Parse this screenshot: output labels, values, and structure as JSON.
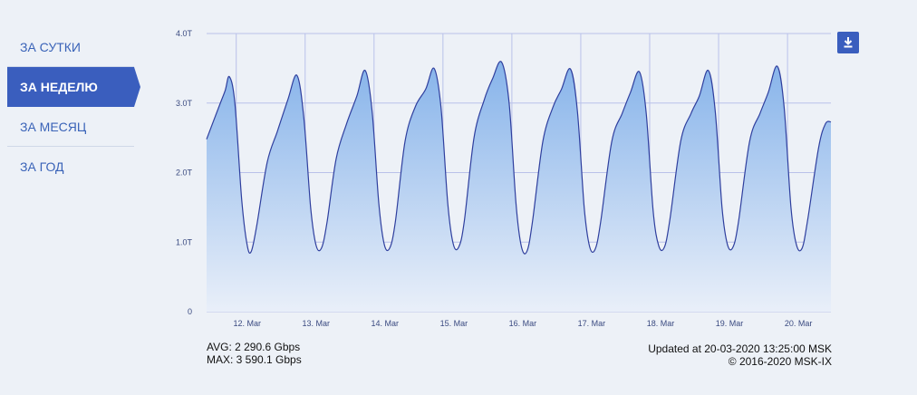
{
  "nav": {
    "items": [
      {
        "label": "ЗА СУТКИ",
        "active": false
      },
      {
        "label": "ЗА НЕДЕЛЮ",
        "active": true
      },
      {
        "label": "ЗА МЕСЯЦ",
        "active": false
      },
      {
        "label": "ЗА ГОД",
        "active": false
      }
    ]
  },
  "download": {
    "icon": "download-icon",
    "color": "#3a5ebe"
  },
  "stats": {
    "avg": "AVG: 2 290.6 Gbps",
    "max": "MAX: 3 590.1 Gbps"
  },
  "footer": {
    "updated": "Updated at 20-03-2020 13:25:00 MSK",
    "copyright": "© 2016-2020 MSK-IX"
  },
  "chart_data": {
    "type": "area",
    "title": "",
    "xlabel": "",
    "ylabel": "",
    "unit": "Tbps",
    "ylim": [
      0,
      4
    ],
    "xlim": [
      -0.43,
      8.63
    ],
    "grid": true,
    "legend": "none",
    "colors": {
      "line": "#2f3f9e",
      "fill_top": "#86b3ea",
      "fill_bottom": "#e9eff9",
      "grid": "#b9c1ea"
    },
    "y_ticks": [
      {
        "value": 0,
        "label": "0"
      },
      {
        "value": 1,
        "label": "1.0T"
      },
      {
        "value": 2,
        "label": "2.0T"
      },
      {
        "value": 3,
        "label": "3.0T"
      },
      {
        "value": 4,
        "label": "4.0T"
      }
    ],
    "x_ticks": [
      {
        "value": 0,
        "label": "12. Mar"
      },
      {
        "value": 1,
        "label": "13. Mar"
      },
      {
        "value": 2,
        "label": "14. Mar"
      },
      {
        "value": 3,
        "label": "15. Mar"
      },
      {
        "value": 4,
        "label": "16. Mar"
      },
      {
        "value": 5,
        "label": "17. Mar"
      },
      {
        "value": 6,
        "label": "18. Mar"
      },
      {
        "value": 7,
        "label": "19. Mar"
      },
      {
        "value": 8,
        "label": "20. Mar"
      }
    ],
    "series": [
      {
        "points": [
          [
            -0.43,
            2.48
          ],
          [
            -0.25,
            2.95
          ],
          [
            -0.16,
            3.18
          ],
          [
            -0.1,
            3.38
          ],
          [
            -0.02,
            3.0
          ],
          [
            0.08,
            1.6
          ],
          [
            0.16,
            0.95
          ],
          [
            0.22,
            0.87
          ],
          [
            0.3,
            1.25
          ],
          [
            0.45,
            2.15
          ],
          [
            0.6,
            2.6
          ],
          [
            0.75,
            3.05
          ],
          [
            0.88,
            3.4
          ],
          [
            0.98,
            2.8
          ],
          [
            1.08,
            1.5
          ],
          [
            1.16,
            0.95
          ],
          [
            1.24,
            0.92
          ],
          [
            1.32,
            1.3
          ],
          [
            1.45,
            2.2
          ],
          [
            1.6,
            2.7
          ],
          [
            1.75,
            3.1
          ],
          [
            1.87,
            3.47
          ],
          [
            1.97,
            2.9
          ],
          [
            2.07,
            1.55
          ],
          [
            2.15,
            0.96
          ],
          [
            2.23,
            0.92
          ],
          [
            2.31,
            1.3
          ],
          [
            2.45,
            2.45
          ],
          [
            2.6,
            2.95
          ],
          [
            2.75,
            3.2
          ],
          [
            2.87,
            3.5
          ],
          [
            2.97,
            2.95
          ],
          [
            3.07,
            1.55
          ],
          [
            3.15,
            0.97
          ],
          [
            3.23,
            0.93
          ],
          [
            3.31,
            1.3
          ],
          [
            3.45,
            2.5
          ],
          [
            3.6,
            3.05
          ],
          [
            3.72,
            3.35
          ],
          [
            3.85,
            3.59
          ],
          [
            3.96,
            3.0
          ],
          [
            4.06,
            1.55
          ],
          [
            4.14,
            0.93
          ],
          [
            4.22,
            0.87
          ],
          [
            4.3,
            1.3
          ],
          [
            4.45,
            2.45
          ],
          [
            4.6,
            2.95
          ],
          [
            4.72,
            3.2
          ],
          [
            4.85,
            3.49
          ],
          [
            4.95,
            2.9
          ],
          [
            5.05,
            1.5
          ],
          [
            5.13,
            0.93
          ],
          [
            5.21,
            0.9
          ],
          [
            5.29,
            1.3
          ],
          [
            5.45,
            2.45
          ],
          [
            5.6,
            2.85
          ],
          [
            5.72,
            3.15
          ],
          [
            5.85,
            3.45
          ],
          [
            5.95,
            2.85
          ],
          [
            6.05,
            1.45
          ],
          [
            6.13,
            0.95
          ],
          [
            6.21,
            0.92
          ],
          [
            6.29,
            1.3
          ],
          [
            6.45,
            2.45
          ],
          [
            6.6,
            2.85
          ],
          [
            6.72,
            3.1
          ],
          [
            6.85,
            3.47
          ],
          [
            6.95,
            2.9
          ],
          [
            7.05,
            1.5
          ],
          [
            7.13,
            0.96
          ],
          [
            7.21,
            0.93
          ],
          [
            7.29,
            1.3
          ],
          [
            7.45,
            2.45
          ],
          [
            7.6,
            2.85
          ],
          [
            7.72,
            3.15
          ],
          [
            7.85,
            3.53
          ],
          [
            7.95,
            2.95
          ],
          [
            8.05,
            1.5
          ],
          [
            8.13,
            0.96
          ],
          [
            8.21,
            0.91
          ],
          [
            8.29,
            1.3
          ],
          [
            8.45,
            2.35
          ],
          [
            8.55,
            2.7
          ],
          [
            8.63,
            2.73
          ]
        ]
      }
    ]
  }
}
